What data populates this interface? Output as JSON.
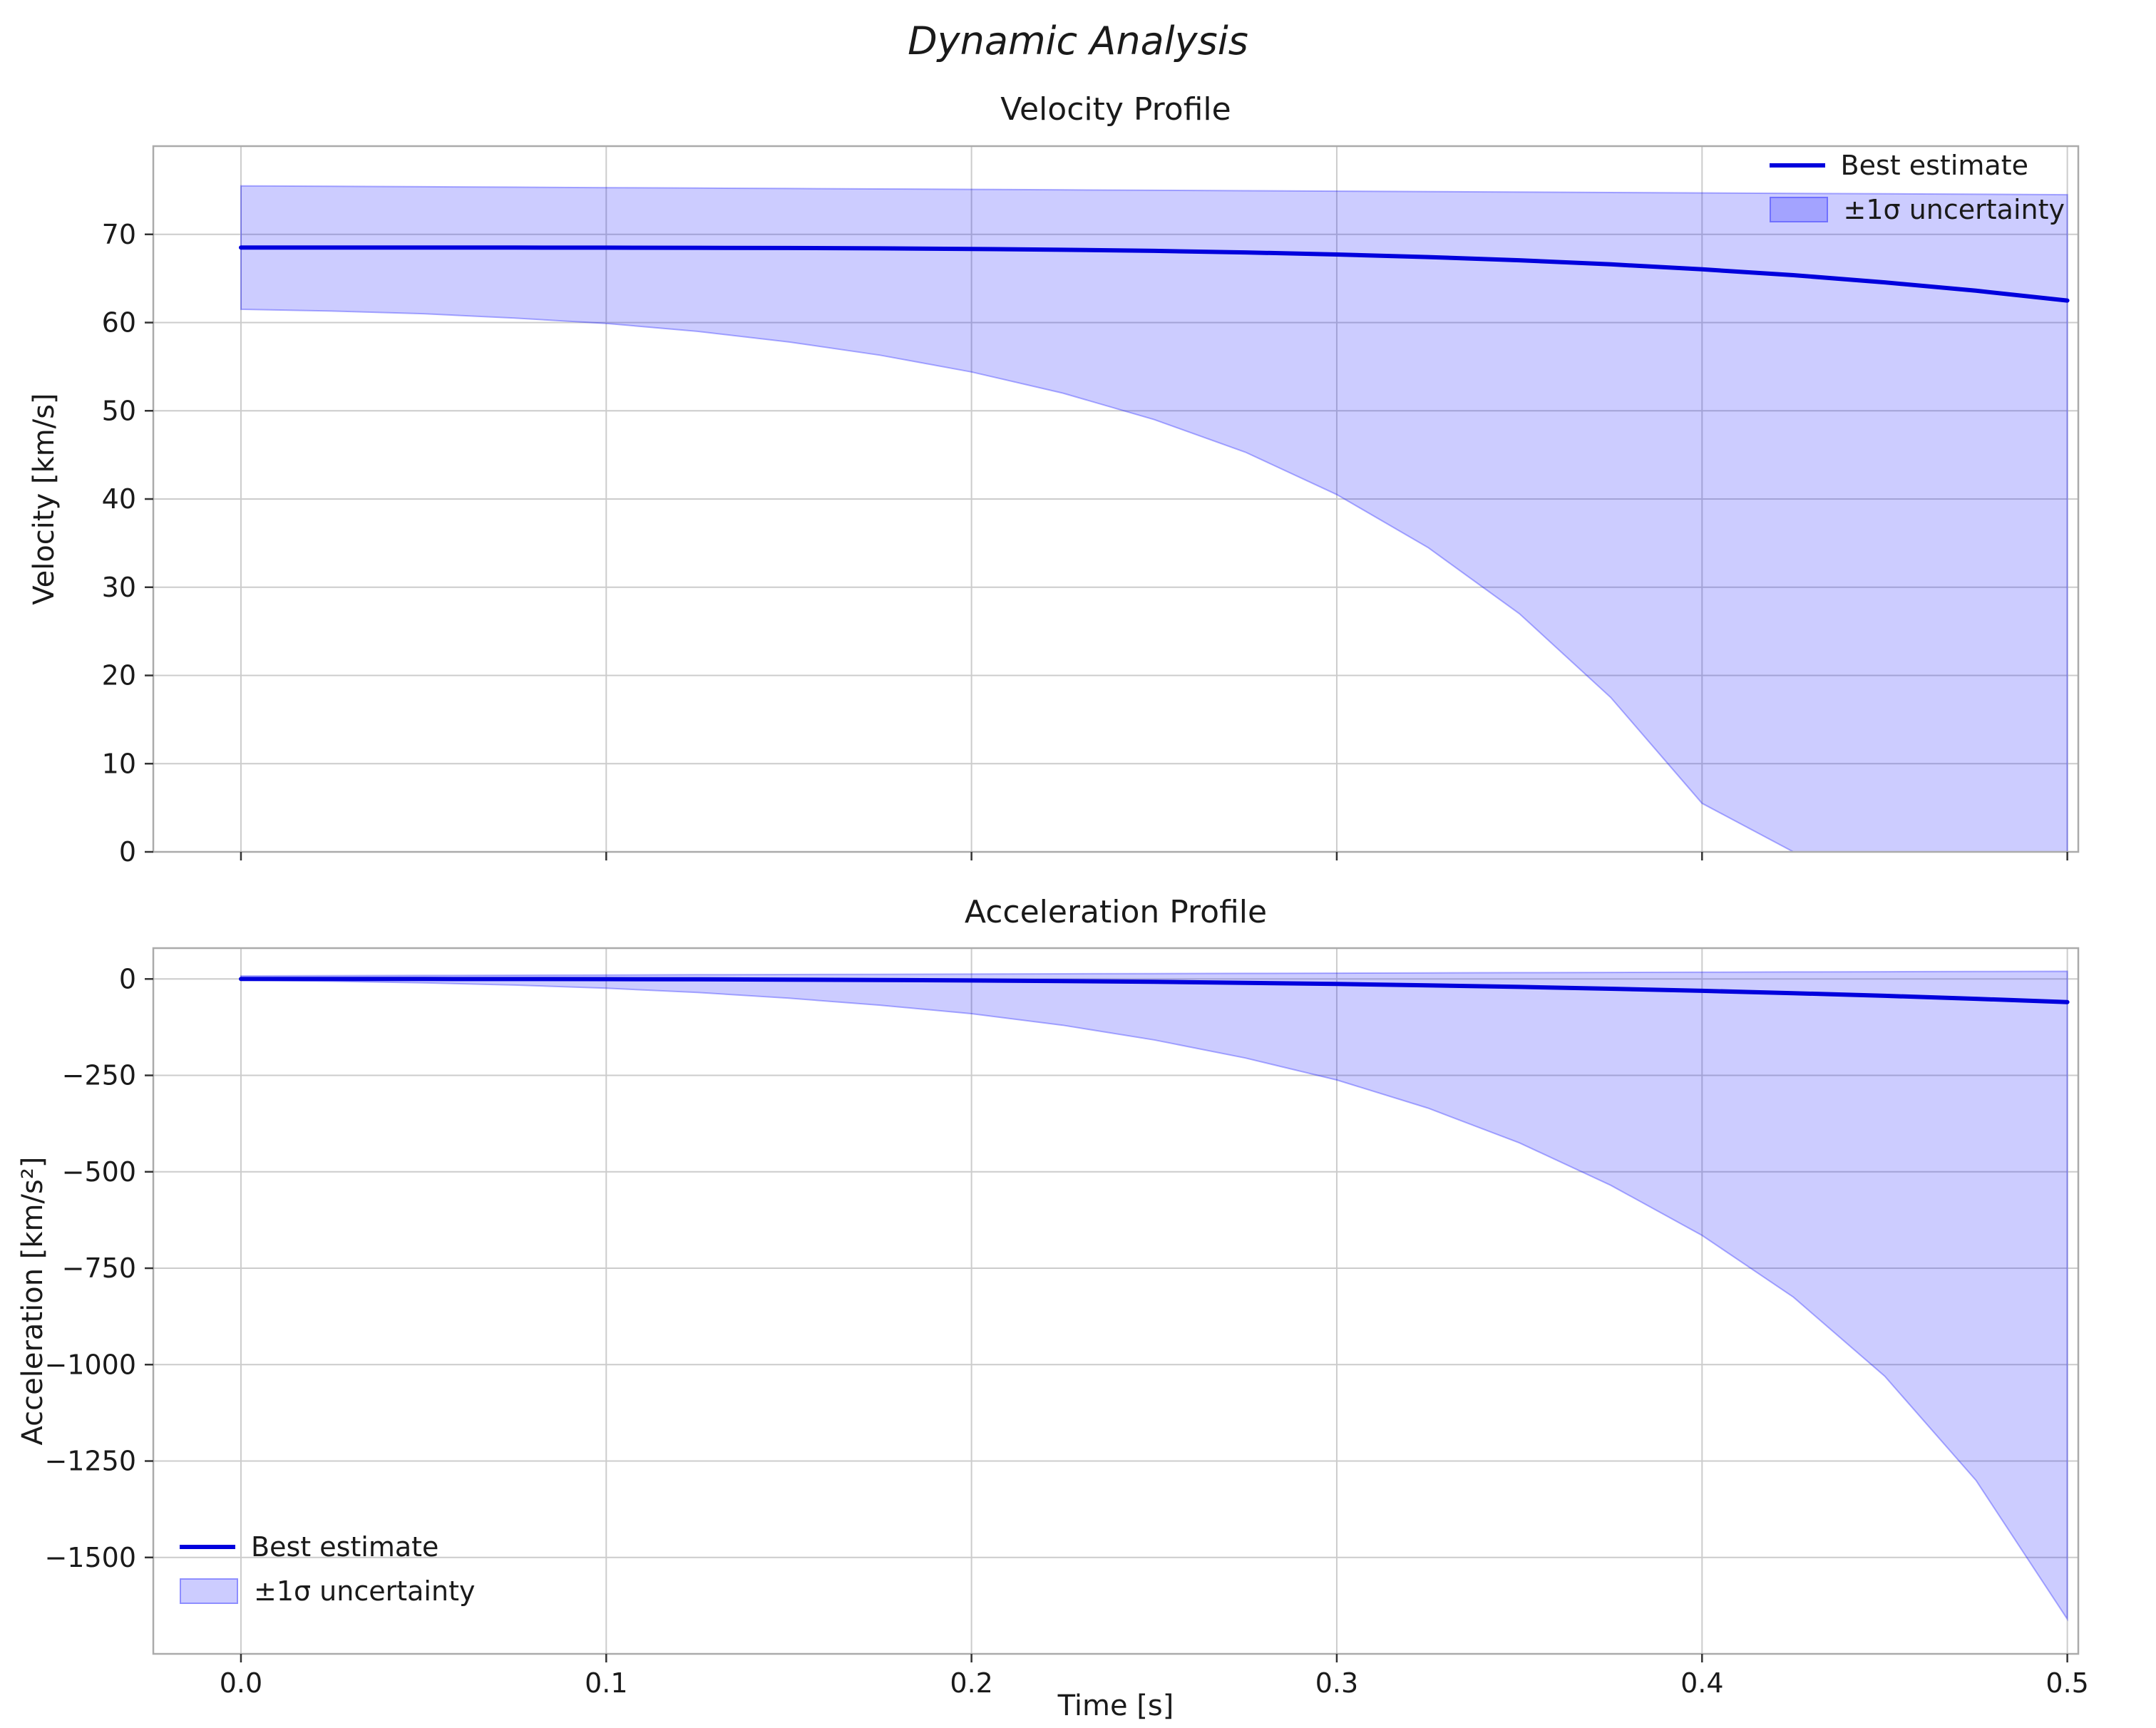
{
  "figure": {
    "suptitle": "Dynamic Analysis",
    "colors": {
      "line": "#0000dd",
      "band_fill": "rgba(0,0,255,0.20)",
      "band_edge": "rgba(0,0,255,0.30)",
      "grid": "#cccccc",
      "spine": "#ababab",
      "tick": "#333333",
      "text": "#1a1a1a"
    }
  },
  "chart_data": [
    {
      "type": "line",
      "title": "Velocity Profile",
      "xlabel": "",
      "ylabel": "Velocity [km/s]",
      "x": [
        0,
        0.025,
        0.05,
        0.075,
        0.1,
        0.125,
        0.15,
        0.175,
        0.2,
        0.225,
        0.25,
        0.275,
        0.3,
        0.325,
        0.35,
        0.375,
        0.4,
        0.425,
        0.45,
        0.475,
        0.5
      ],
      "series": [
        {
          "name": "Best estimate",
          "values": [
            68.5,
            68.5,
            68.5,
            68.5,
            68.49,
            68.48,
            68.45,
            68.41,
            68.35,
            68.25,
            68.13,
            67.95,
            67.72,
            67.43,
            67.06,
            66.6,
            66.04,
            65.37,
            64.56,
            63.61,
            62.5
          ]
        }
      ],
      "band": {
        "name": "±1σ uncertainty",
        "upper": [
          75.5,
          75.45,
          75.4,
          75.35,
          75.3,
          75.25,
          75.2,
          75.15,
          75.1,
          75.05,
          75.0,
          74.95,
          74.9,
          74.85,
          74.8,
          74.75,
          74.7,
          74.65,
          74.6,
          74.55,
          74.5
        ],
        "lower": [
          61.5,
          61.3,
          61.0,
          60.5,
          59.9,
          59.0,
          57.8,
          56.3,
          54.4,
          52.0,
          49.0,
          45.3,
          40.5,
          34.5,
          27.0,
          17.5,
          5.5,
          0,
          0,
          0,
          0
        ]
      },
      "xlim": [
        -0.024,
        0.503
      ],
      "ylim": [
        0,
        80
      ],
      "xticks": {
        "values": [
          0,
          0.1,
          0.2,
          0.3,
          0.4,
          0.5
        ],
        "labels": [
          "0.0",
          "0.1",
          "0.2",
          "0.3",
          "0.4",
          "0.5"
        ],
        "show_labels": false
      },
      "yticks": {
        "values": [
          0,
          10,
          20,
          30,
          40,
          50,
          60,
          70
        ],
        "labels": [
          "0",
          "10",
          "20",
          "30",
          "40",
          "50",
          "60",
          "70"
        ]
      },
      "grid": true,
      "legend": {
        "position": "upper right",
        "entries": [
          "Best estimate",
          "±1σ uncertainty"
        ]
      }
    },
    {
      "type": "line",
      "title": "Acceleration Profile",
      "xlabel": "Time [s]",
      "ylabel": "Acceleration [km/s²]",
      "x": [
        0,
        0.025,
        0.05,
        0.075,
        0.1,
        0.125,
        0.15,
        0.175,
        0.2,
        0.225,
        0.25,
        0.275,
        0.3,
        0.325,
        0.35,
        0.375,
        0.4,
        0.425,
        0.45,
        0.475,
        0.5
      ],
      "series": [
        {
          "name": "Best estimate",
          "values": [
            0,
            -0.01,
            -0.06,
            -0.2,
            -0.48,
            -0.94,
            -1.62,
            -2.57,
            -3.84,
            -5.47,
            -7.5,
            -9.98,
            -12.96,
            -16.5,
            -20.58,
            -25.31,
            -30.72,
            -36.86,
            -43.74,
            -51.42,
            -60
          ]
        }
      ],
      "band": {
        "name": "±1σ uncertainty",
        "upper": [
          8,
          8.6,
          9.2,
          9.8,
          10.4,
          11,
          11.6,
          12.2,
          12.8,
          13.4,
          14,
          14.6,
          15.2,
          15.8,
          16.4,
          17,
          17.6,
          18.2,
          18.8,
          19.4,
          20
        ],
        "lower": [
          -3,
          -6,
          -10,
          -16,
          -24,
          -35,
          -50,
          -68,
          -90,
          -120,
          -158,
          -205,
          -262,
          -335,
          -425,
          -535,
          -665,
          -825,
          -1030,
          -1300,
          -1660
        ]
      },
      "xlim": [
        -0.024,
        0.503
      ],
      "ylim": [
        -1750,
        80
      ],
      "xticks": {
        "values": [
          0,
          0.1,
          0.2,
          0.3,
          0.4,
          0.5
        ],
        "labels": [
          "0.0",
          "0.1",
          "0.2",
          "0.3",
          "0.4",
          "0.5"
        ],
        "show_labels": true
      },
      "yticks": {
        "values": [
          0,
          -250,
          -500,
          -750,
          -1000,
          -1250,
          -1500
        ],
        "labels": [
          "0",
          "−250",
          "−500",
          "−750",
          "−1000",
          "−1250",
          "−1500"
        ]
      },
      "grid": true,
      "legend": {
        "position": "lower left",
        "entries": [
          "Best estimate",
          "±1σ uncertainty"
        ]
      }
    }
  ]
}
